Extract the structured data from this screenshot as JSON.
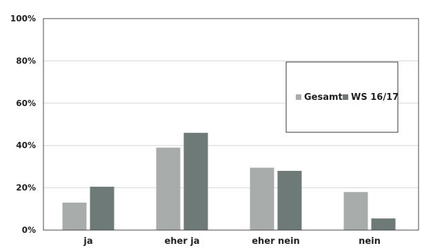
{
  "chart_data": {
    "type": "bar",
    "categories": [
      "ja",
      "eher ja",
      "eher nein",
      "nein"
    ],
    "series": [
      {
        "name": "Gesamt",
        "values": [
          13,
          39,
          29.5,
          18
        ],
        "color": "#a8adab"
      },
      {
        "name": "WS 16/17",
        "values": [
          20.5,
          46,
          28,
          5.5
        ],
        "color": "#6e7a77"
      }
    ],
    "yticks": [
      0,
      20,
      40,
      60,
      80,
      100
    ],
    "ytick_labels": [
      "0%",
      "20%",
      "40%",
      "60%",
      "80%",
      "100%"
    ],
    "ylim": [
      0,
      100
    ],
    "grid": true,
    "legend_position": "right",
    "title": "",
    "xlabel": "",
    "ylabel": ""
  }
}
